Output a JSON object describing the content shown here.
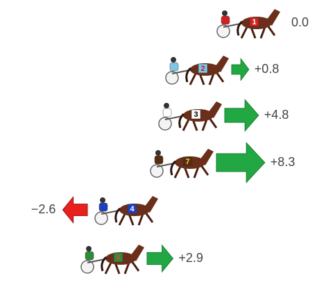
{
  "rows": [
    {
      "horse": "1",
      "cloth": "#d42020",
      "number_color": "#ffffff",
      "value": 0.0,
      "value_label": "0.0"
    },
    {
      "horse": "2",
      "cloth": "#7ec8e3",
      "number_color": "#c8102e",
      "value": 0.8,
      "value_label": "+0.8"
    },
    {
      "horse": "3",
      "cloth": "#ffffff",
      "number_color": "#000000",
      "value": 4.8,
      "value_label": "+4.8"
    },
    {
      "horse": "7",
      "cloth": "#5a2a12",
      "number_color": "#f2e31a",
      "value": 8.3,
      "value_label": "+8.3"
    },
    {
      "horse": "4",
      "cloth": "#1f3fbf",
      "number_color": "#ffffff",
      "value": -2.6,
      "value_label": "−2.6"
    },
    {
      "horse": "6",
      "cloth": "#2e8b3a",
      "number_color": "#c8502e",
      "value": 2.9,
      "value_label": "+2.9"
    }
  ]
}
